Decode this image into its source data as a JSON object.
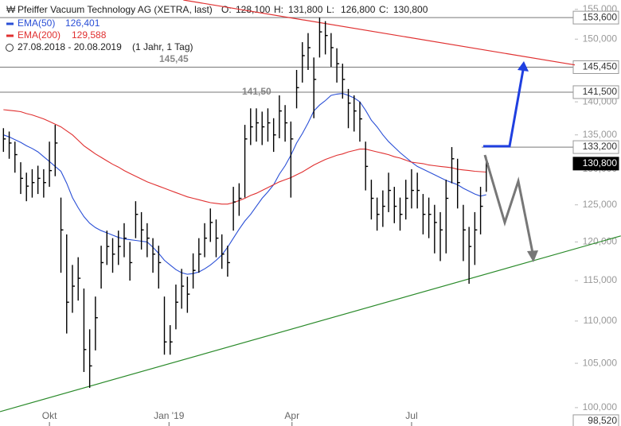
{
  "chart_data": {
    "type": "hlc",
    "title": "Pfeiffer Vacuum Technology AG (XETRA, last)",
    "quote": [
      {
        "label": "O:",
        "value": "128,100"
      },
      {
        "label": "H:",
        "value": "131,800"
      },
      {
        "label": "L:",
        "value": "126,800"
      },
      {
        "label": "C:",
        "value": "130,800"
      }
    ],
    "period": "27.08.2018 - 20.08.2019",
    "period_note": "(1 Jahr, 1 Tag)",
    "log": true,
    "ylim": [
      98000,
      156600
    ],
    "xlim": [
      0,
      100
    ],
    "color": "#000000",
    "yticks": [
      {
        "value": 155000,
        "label": "155,000"
      },
      {
        "value": 150000,
        "label": "150,000"
      },
      {
        "value": 145000,
        "label": "145,000"
      },
      {
        "value": 140000,
        "label": "140,000"
      },
      {
        "value": 135000,
        "label": "135,000"
      },
      {
        "value": 130000,
        "label": "130,000"
      },
      {
        "value": 125000,
        "label": "125,000"
      },
      {
        "value": 120000,
        "label": "120,000"
      },
      {
        "value": 115000,
        "label": "115,000"
      },
      {
        "value": 110000,
        "label": "110,000"
      },
      {
        "value": 105000,
        "label": "105,000"
      },
      {
        "value": 100000,
        "label": "100,000"
      }
    ],
    "xticks": [
      {
        "value": 8.6,
        "label": "Okt"
      },
      {
        "value": 29.4,
        "label": "Jan '19"
      },
      {
        "value": 50.8,
        "label": "Apr"
      },
      {
        "value": 71.6,
        "label": "Jul"
      }
    ],
    "high": [
      136000,
      135500,
      134000,
      131000,
      129500,
      130000,
      130500,
      130000,
      134000,
      136500,
      126000,
      121000,
      117000,
      118000,
      114000,
      109000,
      113000,
      119500,
      121500,
      120500,
      121500,
      122500,
      120000,
      125500,
      124000,
      122500,
      120500,
      119500,
      113000,
      109500,
      114500,
      116500,
      115500,
      118500,
      120500,
      122500,
      124500,
      123000,
      121000,
      119500,
      127500,
      128000,
      136500,
      139000,
      139000,
      138500,
      139000,
      137500,
      141000,
      139500,
      137000,
      145000,
      149500,
      151000,
      147000,
      153600,
      153000,
      151000,
      148500,
      146000,
      142000,
      141000,
      140000,
      134000,
      128500,
      126000,
      127000,
      129500,
      127500,
      126000,
      128500,
      130000,
      129500,
      126500,
      126000,
      125000,
      124000,
      128500,
      133200,
      131500,
      125000,
      122000,
      124000,
      127500,
      131800
    ],
    "low": [
      132500,
      131500,
      129500,
      126500,
      125500,
      126000,
      126500,
      126000,
      127500,
      129000,
      116000,
      108500,
      111000,
      112500,
      104000,
      102200,
      106500,
      114000,
      117000,
      116000,
      117000,
      118000,
      115000,
      120500,
      119000,
      118000,
      116000,
      114000,
      106000,
      106000,
      109000,
      111500,
      111000,
      114000,
      116000,
      118000,
      120000,
      118000,
      116500,
      115500,
      121500,
      123500,
      126000,
      133500,
      134000,
      133500,
      134000,
      132500,
      134500,
      134000,
      126000,
      139000,
      143000,
      145000,
      137500,
      147000,
      147500,
      145500,
      143000,
      140500,
      136000,
      135500,
      134000,
      127000,
      123000,
      121500,
      122000,
      124000,
      122500,
      121500,
      123000,
      124500,
      124500,
      121000,
      120500,
      118500,
      117500,
      118500,
      128000,
      124500,
      117500,
      114600,
      117000,
      121000,
      126800
    ],
    "close": [
      134400,
      133800,
      132100,
      128700,
      127600,
      128100,
      128700,
      128100,
      129800,
      133800,
      121600,
      112300,
      114300,
      115300,
      106600,
      104700,
      110400,
      117300,
      119400,
      118400,
      119400,
      120500,
      117300,
      123700,
      121600,
      120500,
      118400,
      117300,
      107500,
      107500,
      112300,
      114300,
      113300,
      116300,
      118400,
      120500,
      122600,
      120500,
      118400,
      117300,
      125400,
      125900,
      134400,
      136200,
      136800,
      136200,
      136800,
      135000,
      138600,
      136800,
      134400,
      142200,
      147300,
      148600,
      143500,
      151200,
      150600,
      148600,
      146000,
      143500,
      139800,
      138600,
      137400,
      130400,
      125900,
      123700,
      124800,
      127000,
      124800,
      123700,
      125900,
      127000,
      127000,
      123700,
      123700,
      122600,
      121600,
      125900,
      131500,
      128100,
      121600,
      119400,
      121600,
      124800,
      130800
    ],
    "series": [
      {
        "name": "EMA(50)",
        "last_label": "126,401",
        "color": "#2a4fd6",
        "values": [
          135000,
          134700,
          134300,
          133900,
          133400,
          133000,
          132500,
          131800,
          131100,
          130400,
          129700,
          128000,
          126000,
          124600,
          123400,
          122500,
          121900,
          121500,
          121200,
          120900,
          120600,
          120400,
          120300,
          120200,
          120100,
          120000,
          119300,
          118500,
          117600,
          117000,
          116400,
          116000,
          115800,
          115900,
          116100,
          116500,
          117000,
          117600,
          118300,
          119300,
          120500,
          121700,
          122800,
          123700,
          124800,
          125900,
          126800,
          127800,
          129300,
          130500,
          132000,
          133800,
          135200,
          136800,
          138600,
          139500,
          140200,
          141000,
          141200,
          141300,
          141000,
          140600,
          140000,
          138700,
          137200,
          136200,
          135000,
          134000,
          133200,
          132400,
          131700,
          131000,
          130400,
          130000,
          129600,
          129200,
          128800,
          128400,
          128100,
          127800,
          127300,
          126900,
          126500,
          126200,
          126401
        ]
      },
      {
        "name": "EMA(200)",
        "last_label": "129,588",
        "color": "#e03030",
        "values": [
          138800,
          138700,
          138600,
          138500,
          138200,
          138000,
          137700,
          137400,
          137000,
          136600,
          136200,
          135600,
          135000,
          134200,
          133400,
          132800,
          132200,
          131700,
          131200,
          130700,
          130300,
          129800,
          129400,
          129000,
          128600,
          128200,
          127900,
          127600,
          127300,
          127000,
          126700,
          126400,
          126100,
          125900,
          125700,
          125500,
          125300,
          125200,
          125100,
          125100,
          125300,
          125600,
          125900,
          126300,
          126600,
          127000,
          127400,
          127800,
          128200,
          128500,
          128800,
          129200,
          129600,
          130100,
          130600,
          131000,
          131400,
          131700,
          132000,
          132200,
          132500,
          132700,
          132900,
          132900,
          132700,
          132500,
          132300,
          132100,
          131800,
          131600,
          131300,
          131000,
          130900,
          130800,
          130600,
          130500,
          130400,
          130300,
          130200,
          130000,
          129900,
          129800,
          129700,
          129650,
          129588
        ]
      }
    ],
    "levels": [
      {
        "value": 153600,
        "label": "153,600"
      },
      {
        "value": 145450,
        "label": "145,450"
      },
      {
        "value": 141500,
        "label": "141,500"
      },
      {
        "value": 133200,
        "label": "133,200",
        "x": [
          83.8,
          100
        ]
      }
    ],
    "markers": [
      {
        "value": 130800,
        "label": "130,800"
      },
      {
        "value": 98520,
        "label": "98,520"
      }
    ],
    "annotations": [
      {
        "text": "145,45"
      },
      {
        "text": "141,50"
      }
    ],
    "trendlines": [
      {
        "color": "#e03030",
        "x": [
          31.9,
          100
        ],
        "values": [
          156600,
          145800
        ]
      },
      {
        "color": "#2a8a2a",
        "x": [
          0,
          108
        ],
        "values": [
          99560,
          120800
        ]
      }
    ]
  }
}
